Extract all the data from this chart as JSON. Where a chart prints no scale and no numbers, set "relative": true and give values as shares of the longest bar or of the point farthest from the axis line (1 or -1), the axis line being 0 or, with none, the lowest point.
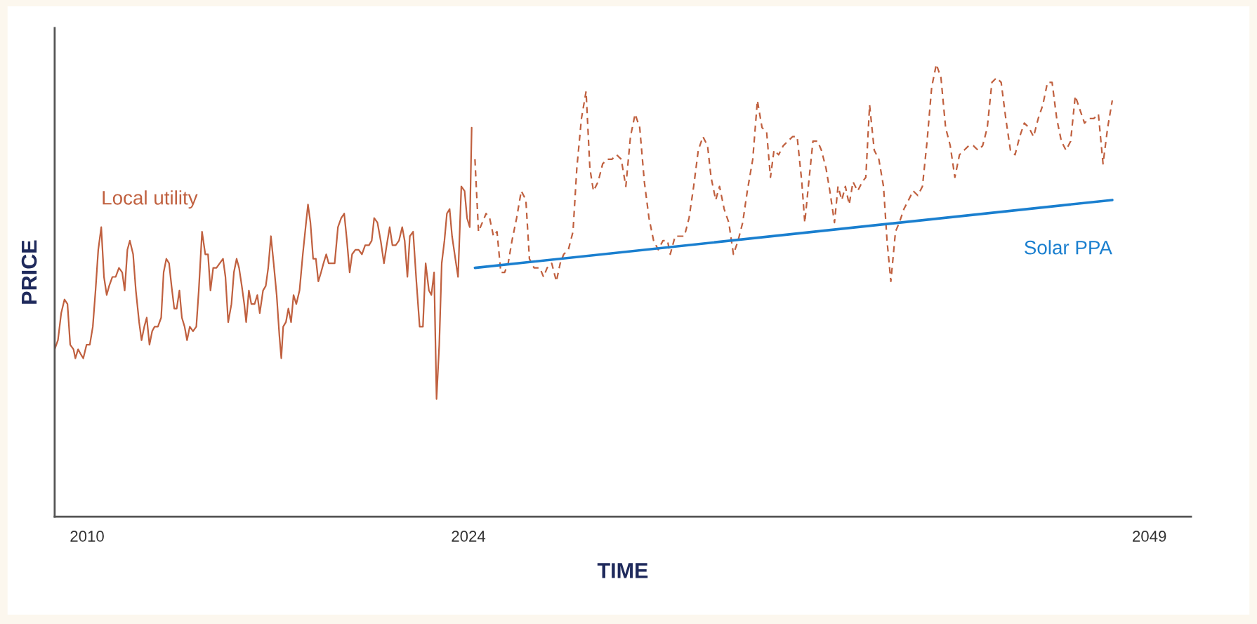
{
  "chart_data": {
    "type": "line",
    "relative": true,
    "xlabel": "TIME",
    "ylabel": "PRICE",
    "xlim": [
      2008.81,
      2050.53
    ],
    "xticks": [
      2010,
      2024,
      2049
    ],
    "grid": false,
    "legend": false,
    "marker": "none",
    "series": [
      {
        "name": "Local utility",
        "color": "#c0603f",
        "line_style": "solid",
        "x": [
          2008.81,
          2008.93,
          2009.05,
          2009.17,
          2009.28,
          2009.38,
          2009.5,
          2009.57,
          2009.67,
          2009.76,
          2009.86,
          2009.98,
          2010.1,
          2010.21,
          2010.31,
          2010.41,
          2010.52,
          2010.62,
          2010.72,
          2010.81,
          2010.93,
          2011.05,
          2011.17,
          2011.29,
          2011.38,
          2011.48,
          2011.57,
          2011.69,
          2011.79,
          2011.91,
          2012.0,
          2012.1,
          2012.19,
          2012.29,
          2012.39,
          2012.48,
          2012.6,
          2012.72,
          2012.81,
          2012.91,
          2013.01,
          2013.1,
          2013.2,
          2013.29,
          2013.39,
          2013.48,
          2013.58,
          2013.67,
          2013.77,
          2013.89,
          2014.01,
          2014.1,
          2014.22,
          2014.34,
          2014.44,
          2014.53,
          2014.63,
          2014.75,
          2014.87,
          2014.99,
          2015.08,
          2015.18,
          2015.3,
          2015.39,
          2015.49,
          2015.58,
          2015.68,
          2015.77,
          2015.84,
          2015.94,
          2016.03,
          2016.15,
          2016.25,
          2016.34,
          2016.46,
          2016.56,
          2016.65,
          2016.75,
          2016.85,
          2016.96,
          2017.06,
          2017.13,
          2017.2,
          2017.3,
          2017.39,
          2017.49,
          2017.58,
          2017.68,
          2017.8,
          2017.92,
          2018.04,
          2018.11,
          2018.2,
          2018.3,
          2018.4,
          2018.49,
          2018.59,
          2018.68,
          2018.78,
          2018.87,
          2018.97,
          2019.09,
          2019.21,
          2019.33,
          2019.44,
          2019.54,
          2019.64,
          2019.73,
          2019.85,
          2019.97,
          2020.09,
          2020.21,
          2020.35,
          2020.45,
          2020.54,
          2020.66,
          2020.78,
          2020.9,
          2021.0,
          2021.11,
          2021.21,
          2021.33,
          2021.45,
          2021.57,
          2021.66,
          2021.76,
          2021.85,
          2021.97,
          2022.09,
          2022.21,
          2022.33,
          2022.43,
          2022.55,
          2022.64,
          2022.74,
          2022.83,
          2022.93,
          2023.02,
          2023.12,
          2023.21,
          2023.31,
          2023.4,
          2023.52,
          2023.62,
          2023.74,
          2023.86,
          2023.95,
          2024.05,
          2024.12
        ],
        "values": [
          0.37,
          0.39,
          0.45,
          0.48,
          0.47,
          0.38,
          0.37,
          0.35,
          0.37,
          0.36,
          0.35,
          0.38,
          0.38,
          0.42,
          0.5,
          0.59,
          0.64,
          0.53,
          0.49,
          0.51,
          0.53,
          0.53,
          0.55,
          0.54,
          0.5,
          0.59,
          0.61,
          0.58,
          0.5,
          0.43,
          0.39,
          0.42,
          0.44,
          0.38,
          0.41,
          0.42,
          0.42,
          0.44,
          0.54,
          0.57,
          0.56,
          0.51,
          0.46,
          0.46,
          0.5,
          0.44,
          0.42,
          0.39,
          0.42,
          0.41,
          0.42,
          0.5,
          0.63,
          0.58,
          0.58,
          0.5,
          0.55,
          0.55,
          0.56,
          0.57,
          0.53,
          0.43,
          0.47,
          0.54,
          0.57,
          0.55,
          0.51,
          0.47,
          0.43,
          0.5,
          0.47,
          0.47,
          0.49,
          0.45,
          0.5,
          0.51,
          0.55,
          0.62,
          0.56,
          0.49,
          0.4,
          0.35,
          0.42,
          0.43,
          0.46,
          0.43,
          0.49,
          0.47,
          0.5,
          0.58,
          0.65,
          0.69,
          0.65,
          0.57,
          0.57,
          0.52,
          0.54,
          0.56,
          0.58,
          0.56,
          0.56,
          0.56,
          0.64,
          0.66,
          0.67,
          0.61,
          0.54,
          0.58,
          0.59,
          0.59,
          0.58,
          0.6,
          0.6,
          0.61,
          0.66,
          0.65,
          0.61,
          0.56,
          0.6,
          0.64,
          0.6,
          0.6,
          0.61,
          0.64,
          0.61,
          0.53,
          0.62,
          0.63,
          0.52,
          0.42,
          0.42,
          0.56,
          0.5,
          0.49,
          0.54,
          0.26,
          0.38,
          0.56,
          0.61,
          0.67,
          0.68,
          0.62,
          0.57,
          0.53,
          0.73,
          0.72,
          0.66,
          0.64,
          0.86
        ]
      },
      {
        "color": "#c0603f",
        "line_style": "dashed",
        "x": [
          2024.24,
          2024.37,
          2024.51,
          2024.65,
          2024.78,
          2024.92,
          2025.05,
          2025.19,
          2025.33,
          2025.46,
          2025.6,
          2025.77,
          2025.94,
          2026.11,
          2026.24,
          2026.41,
          2026.62,
          2026.76,
          2026.89,
          2027.06,
          2027.23,
          2027.37,
          2027.5,
          2027.67,
          2027.84,
          2027.98,
          2028.15,
          2028.32,
          2028.46,
          2028.59,
          2028.76,
          2028.93,
          2029.1,
          2029.27,
          2029.44,
          2029.61,
          2029.78,
          2029.95,
          2030.12,
          2030.29,
          2030.46,
          2030.63,
          2030.8,
          2030.97,
          2031.14,
          2031.31,
          2031.41,
          2031.59,
          2031.76,
          2031.93,
          2032.1,
          2032.27,
          2032.44,
          2032.61,
          2032.78,
          2032.91,
          2033.08,
          2033.22,
          2033.39,
          2033.56,
          2033.73,
          2033.9,
          2034.07,
          2034.24,
          2034.44,
          2034.61,
          2034.78,
          2034.95,
          2035.09,
          2035.22,
          2035.39,
          2035.56,
          2035.73,
          2035.9,
          2036.07,
          2036.24,
          2036.35,
          2036.48,
          2036.65,
          2036.82,
          2036.96,
          2037.13,
          2037.27,
          2037.44,
          2037.57,
          2037.71,
          2037.84,
          2037.98,
          2038.12,
          2038.29,
          2038.46,
          2038.59,
          2038.73,
          2038.9,
          2039.07,
          2039.24,
          2039.37,
          2039.51,
          2039.68,
          2039.82,
          2039.99,
          2040.16,
          2040.33,
          2040.5,
          2040.67,
          2040.84,
          2041.01,
          2041.18,
          2041.35,
          2041.52,
          2041.69,
          2041.86,
          2042.03,
          2042.2,
          2042.37,
          2042.54,
          2042.71,
          2042.88,
          2043.05,
          2043.22,
          2043.39,
          2043.56,
          2043.73,
          2043.9,
          2044.07,
          2044.24,
          2044.41,
          2044.58,
          2044.75,
          2044.92,
          2045.09,
          2045.26,
          2045.43,
          2045.6,
          2045.77,
          2045.94,
          2046.11,
          2046.28,
          2046.45,
          2046.62,
          2046.79,
          2046.96,
          2047.13,
          2047.3,
          2047.47,
          2047.64
        ],
        "values": [
          0.79,
          0.63,
          0.65,
          0.67,
          0.66,
          0.62,
          0.63,
          0.54,
          0.54,
          0.56,
          0.61,
          0.66,
          0.72,
          0.7,
          0.57,
          0.55,
          0.55,
          0.53,
          0.55,
          0.56,
          0.52,
          0.56,
          0.58,
          0.59,
          0.63,
          0.77,
          0.88,
          0.94,
          0.77,
          0.72,
          0.74,
          0.78,
          0.79,
          0.79,
          0.8,
          0.79,
          0.73,
          0.84,
          0.89,
          0.86,
          0.74,
          0.66,
          0.61,
          0.59,
          0.61,
          0.61,
          0.58,
          0.62,
          0.62,
          0.62,
          0.66,
          0.73,
          0.81,
          0.84,
          0.82,
          0.75,
          0.7,
          0.73,
          0.68,
          0.65,
          0.58,
          0.61,
          0.65,
          0.72,
          0.79,
          0.92,
          0.86,
          0.85,
          0.75,
          0.81,
          0.8,
          0.82,
          0.83,
          0.84,
          0.84,
          0.74,
          0.65,
          0.73,
          0.83,
          0.83,
          0.81,
          0.77,
          0.72,
          0.65,
          0.73,
          0.7,
          0.73,
          0.69,
          0.74,
          0.72,
          0.74,
          0.75,
          0.91,
          0.81,
          0.79,
          0.73,
          0.61,
          0.52,
          0.63,
          0.65,
          0.68,
          0.7,
          0.72,
          0.71,
          0.73,
          0.83,
          0.95,
          1.0,
          0.97,
          0.86,
          0.82,
          0.75,
          0.8,
          0.81,
          0.82,
          0.82,
          0.81,
          0.82,
          0.86,
          0.96,
          0.97,
          0.96,
          0.88,
          0.81,
          0.8,
          0.84,
          0.87,
          0.86,
          0.84,
          0.88,
          0.91,
          0.96,
          0.96,
          0.88,
          0.83,
          0.81,
          0.83,
          0.93,
          0.9,
          0.87,
          0.88,
          0.88,
          0.89,
          0.78,
          0.86,
          0.92
        ]
      },
      {
        "name": "Solar PPA",
        "color": "#1a7fcf",
        "line_style": "solid",
        "x": [
          2024.24,
          2047.64
        ],
        "values": [
          0.55,
          0.7
        ]
      }
    ]
  }
}
